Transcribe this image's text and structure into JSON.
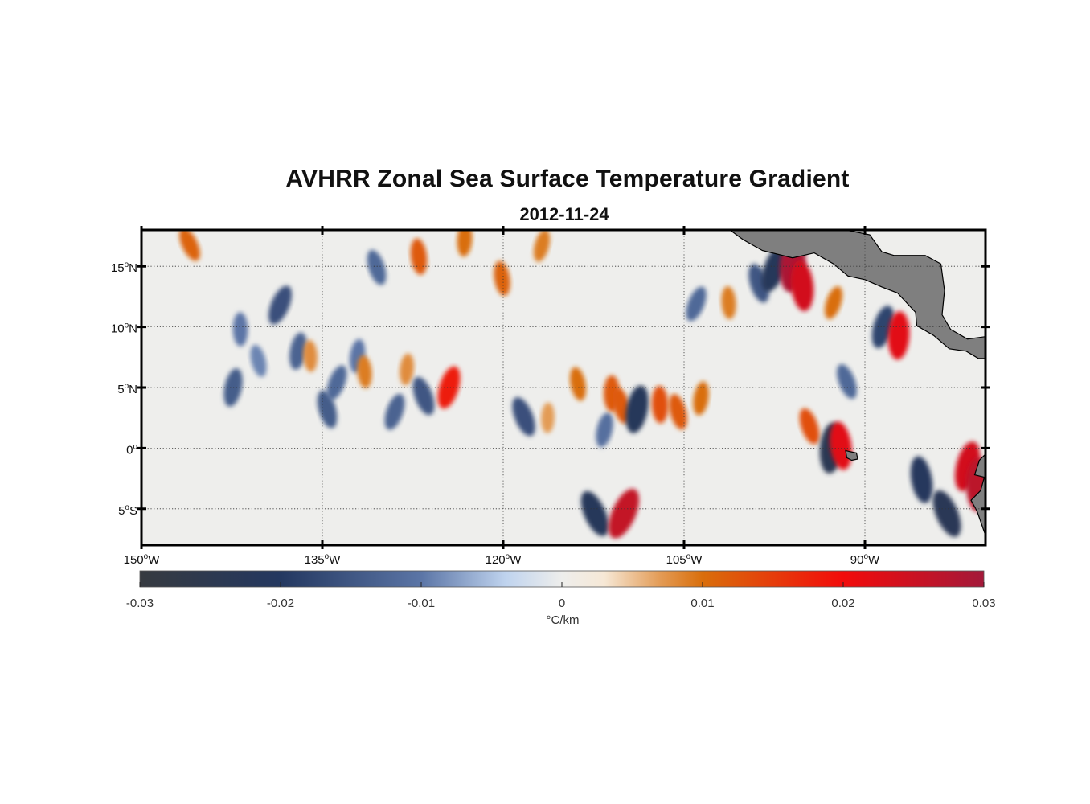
{
  "figure": {
    "title": "AVHRR Zonal Sea Surface Temperature Gradient",
    "subtitle": "2012-11-24"
  },
  "map": {
    "lon_range": [
      -150,
      -80
    ],
    "lat_range": [
      -8,
      18
    ],
    "lon_ticks": [
      {
        "value": -150,
        "label": "150°W"
      },
      {
        "value": -135,
        "label": "135°W"
      },
      {
        "value": -120,
        "label": "120°W"
      },
      {
        "value": -105,
        "label": "105°W"
      },
      {
        "value": -90,
        "label": "90°W"
      }
    ],
    "lat_ticks": [
      {
        "value": 15,
        "label": "15°N"
      },
      {
        "value": 10,
        "label": "10°N"
      },
      {
        "value": 5,
        "label": "5°N"
      },
      {
        "value": 0,
        "label": "0°"
      },
      {
        "value": -5,
        "label": "5°S"
      }
    ],
    "grid": "dotted",
    "land_color": "#7f7f7f",
    "land_outline": [
      [
        -91.6,
        18
      ],
      [
        -89.6,
        17.6
      ],
      [
        -88.6,
        16.2
      ],
      [
        -87.6,
        15.9
      ],
      [
        -86.2,
        15.9
      ],
      [
        -85.0,
        15.9
      ],
      [
        -83.7,
        15.2
      ],
      [
        -83.4,
        13.0
      ],
      [
        -83.6,
        11.0
      ],
      [
        -82.9,
        9.8
      ],
      [
        -81.5,
        9.0
      ],
      [
        -80,
        9.2
      ],
      [
        -80,
        7.4
      ],
      [
        -80.6,
        7.4
      ],
      [
        -81.6,
        8.0
      ],
      [
        -83.0,
        8.2
      ],
      [
        -84.3,
        9.3
      ],
      [
        -85.7,
        10.1
      ],
      [
        -85.8,
        11.2
      ],
      [
        -87.3,
        12.8
      ],
      [
        -88.6,
        13.3
      ],
      [
        -90.0,
        13.9
      ],
      [
        -91.4,
        14.2
      ],
      [
        -92.6,
        15.2
      ],
      [
        -94.2,
        16.1
      ],
      [
        -96.0,
        15.7
      ],
      [
        -98.5,
        16.3
      ],
      [
        -100.1,
        17.2
      ],
      [
        -101.2,
        18
      ],
      [
        -91.6,
        18
      ]
    ],
    "islands": [
      {
        "name_hidden": true,
        "outline": [
          [
            -91.6,
            -0.2
          ],
          [
            -91.2,
            -0.3
          ],
          [
            -90.7,
            -0.4
          ],
          [
            -90.6,
            -0.9
          ],
          [
            -91.1,
            -1.0
          ],
          [
            -91.5,
            -0.8
          ],
          [
            -91.6,
            -0.2
          ]
        ]
      }
    ],
    "south_america_outline": [
      [
        -80,
        -7.2
      ],
      [
        -80.7,
        -5.2
      ],
      [
        -81.2,
        -4.3
      ],
      [
        -80.4,
        -3.5
      ],
      [
        -80.1,
        -2.4
      ],
      [
        -80.9,
        -2.2
      ],
      [
        -80.5,
        -1.0
      ],
      [
        -80.0,
        -0.5
      ],
      [
        -80,
        -7.2
      ]
    ]
  },
  "chart_data": {
    "type": "heatmap",
    "variable": "zonal SST gradient",
    "units": "°C/km",
    "x_axis": "longitude",
    "y_axis": "latitude",
    "colorbar": {
      "range": [
        -0.03,
        0.03
      ],
      "ticks": [
        {
          "value": -0.03,
          "label": "-0.03"
        },
        {
          "value": -0.02,
          "label": "-0.02"
        },
        {
          "value": -0.01,
          "label": "-0.01"
        },
        {
          "value": 0,
          "label": "0"
        },
        {
          "value": 0.01,
          "label": "0.01"
        },
        {
          "value": 0.02,
          "label": "0.02"
        },
        {
          "value": 0.03,
          "label": "0.03"
        }
      ],
      "label": "°C/km",
      "stops": [
        {
          "value": -0.03,
          "color": "#363a40"
        },
        {
          "value": -0.02,
          "color": "#243860"
        },
        {
          "value": -0.01,
          "color": "#5b75a6"
        },
        {
          "value": -0.004,
          "color": "#bfd3ee"
        },
        {
          "value": 0,
          "color": "#eeeeec"
        },
        {
          "value": 0.003,
          "color": "#f6e8d6"
        },
        {
          "value": 0.007,
          "color": "#e39b55"
        },
        {
          "value": 0.01,
          "color": "#d96e0b"
        },
        {
          "value": 0.02,
          "color": "#f20b0b"
        },
        {
          "value": 0.03,
          "color": "#a3193a"
        }
      ]
    },
    "features": [
      {
        "lon": -146.0,
        "lat": 16.8,
        "value": 0.011
      },
      {
        "lon": -142.4,
        "lat": 5.0,
        "value": -0.014
      },
      {
        "lon": -141.8,
        "lat": 9.8,
        "value": -0.01
      },
      {
        "lon": -140.3,
        "lat": 7.2,
        "value": -0.009
      },
      {
        "lon": -138.5,
        "lat": 11.8,
        "value": -0.016
      },
      {
        "lon": -137.0,
        "lat": 8.0,
        "value": -0.013
      },
      {
        "lon": -136.0,
        "lat": 7.6,
        "value": 0.008
      },
      {
        "lon": -134.6,
        "lat": 3.2,
        "value": -0.014
      },
      {
        "lon": -133.8,
        "lat": 5.4,
        "value": -0.012
      },
      {
        "lon": -132.1,
        "lat": 7.6,
        "value": -0.01
      },
      {
        "lon": -131.5,
        "lat": 6.3,
        "value": 0.009
      },
      {
        "lon": -130.5,
        "lat": 14.9,
        "value": -0.012
      },
      {
        "lon": -129.0,
        "lat": 3.0,
        "value": -0.013
      },
      {
        "lon": -128.0,
        "lat": 6.5,
        "value": 0.008
      },
      {
        "lon": -127.0,
        "lat": 15.8,
        "value": 0.012
      },
      {
        "lon": -126.6,
        "lat": 4.3,
        "value": -0.015
      },
      {
        "lon": -124.5,
        "lat": 5.0,
        "value": 0.018
      },
      {
        "lon": -123.2,
        "lat": 17.2,
        "value": 0.01
      },
      {
        "lon": -120.1,
        "lat": 14.0,
        "value": 0.011
      },
      {
        "lon": -118.3,
        "lat": 2.6,
        "value": -0.016
      },
      {
        "lon": -116.8,
        "lat": 16.7,
        "value": 0.009
      },
      {
        "lon": -116.3,
        "lat": 2.5,
        "value": 0.007
      },
      {
        "lon": -113.8,
        "lat": 5.3,
        "value": 0.01
      },
      {
        "lon": -112.4,
        "lat": -5.4,
        "value": -0.022
      },
      {
        "lon": -111.6,
        "lat": 1.5,
        "value": -0.011
      },
      {
        "lon": -111.0,
        "lat": 4.5,
        "value": 0.012
      },
      {
        "lon": -110.2,
        "lat": 3.5,
        "value": 0.012
      },
      {
        "lon": -110.0,
        "lat": -5.4,
        "value": 0.026
      },
      {
        "lon": -108.9,
        "lat": 3.2,
        "value": -0.022
      },
      {
        "lon": -107.0,
        "lat": 3.6,
        "value": 0.013
      },
      {
        "lon": -105.5,
        "lat": 3.0,
        "value": 0.012
      },
      {
        "lon": -104.0,
        "lat": 11.9,
        "value": -0.012
      },
      {
        "lon": -103.6,
        "lat": 4.1,
        "value": 0.01
      },
      {
        "lon": -101.3,
        "lat": 12.0,
        "value": 0.009
      },
      {
        "lon": -98.8,
        "lat": 13.6,
        "value": -0.015
      },
      {
        "lon": -97.5,
        "lat": 14.8,
        "value": -0.022
      },
      {
        "lon": -96.0,
        "lat": 15.2,
        "value": 0.029
      },
      {
        "lon": -95.2,
        "lat": 13.4,
        "value": 0.024
      },
      {
        "lon": -94.6,
        "lat": 1.8,
        "value": 0.013
      },
      {
        "lon": -92.6,
        "lat": 12.0,
        "value": 0.01
      },
      {
        "lon": -92.8,
        "lat": 0.0,
        "value": -0.024
      },
      {
        "lon": -92.0,
        "lat": 0.2,
        "value": 0.022
      },
      {
        "lon": -91.5,
        "lat": 5.5,
        "value": -0.012
      },
      {
        "lon": -88.5,
        "lat": 10.0,
        "value": -0.018
      },
      {
        "lon": -87.2,
        "lat": 9.3,
        "value": 0.022
      },
      {
        "lon": -85.3,
        "lat": -2.6,
        "value": -0.021
      },
      {
        "lon": -83.2,
        "lat": -5.4,
        "value": -0.023
      },
      {
        "lon": -81.5,
        "lat": -1.5,
        "value": 0.024
      },
      {
        "lon": -80.6,
        "lat": -3.0,
        "value": 0.027
      }
    ]
  }
}
